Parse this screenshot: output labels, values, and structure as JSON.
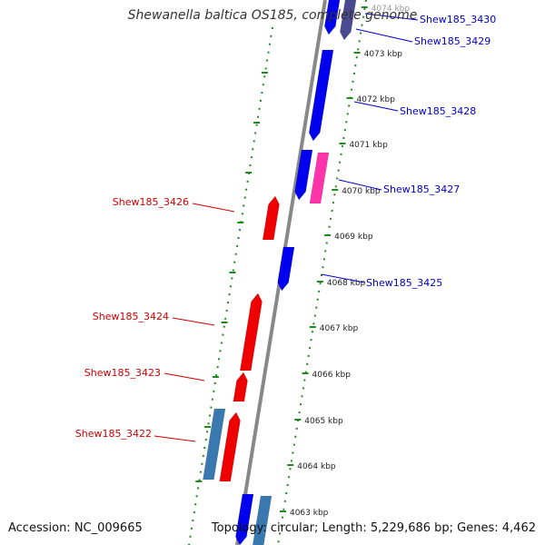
{
  "title": "Shewanella baltica OS185, complete genome",
  "accession": "Accession: NC_009665",
  "summary": "Topology: circular; Length: 5,229,686 bp; Genes: 4,462",
  "colors": {
    "backbone": "#888888",
    "tick_track": "#1f8a1f",
    "forward_gene": "#ee0000",
    "reverse_gene": "#0000ee",
    "pink_gene": "#ff33aa",
    "steelblue_gene": "#3a78b0",
    "dark_gene": "#4a4a90",
    "label_red": "#cc0000",
    "label_blue": "#0000cc"
  },
  "kbp_ticks": [
    "4063 kbp",
    "4064 kbp",
    "4065 kbp",
    "4066 kbp",
    "4067 kbp",
    "4068 kbp",
    "4069 kbp",
    "4070 kbp",
    "4071 kbp",
    "4072 kbp",
    "4073 kbp",
    "4074 kbp"
  ],
  "gene_labels": [
    {
      "text": "Shew185_3430",
      "strand": "reverse"
    },
    {
      "text": "Shew185_3429",
      "strand": "reverse"
    },
    {
      "text": "Shew185_3428",
      "strand": "reverse"
    },
    {
      "text": "Shew185_3427",
      "strand": "reverse"
    },
    {
      "text": "Shew185_3426",
      "strand": "forward"
    },
    {
      "text": "Shew185_3425",
      "strand": "reverse"
    },
    {
      "text": "Shew185_3424",
      "strand": "forward"
    },
    {
      "text": "Shew185_3423",
      "strand": "forward"
    },
    {
      "text": "Shew185_3422",
      "strand": "forward"
    }
  ]
}
